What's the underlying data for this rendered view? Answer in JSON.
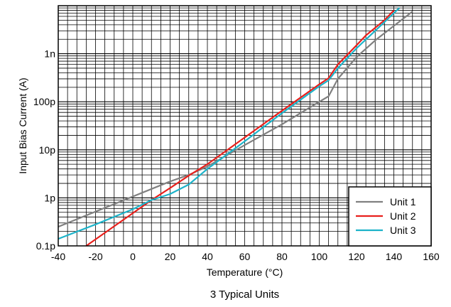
{
  "chart_data": {
    "type": "line",
    "title": "",
    "caption": "3 Typical Units",
    "xlabel": "Temperature (°C)",
    "ylabel": "Input Bias Current (A)",
    "xlim": [
      -40,
      160
    ],
    "ylim": [
      1e-13,
      1e-08
    ],
    "yscale": "log",
    "grid": true,
    "legend_position": "bottom-right",
    "x_ticks": [
      -40,
      -20,
      0,
      20,
      40,
      60,
      80,
      100,
      120,
      140,
      160
    ],
    "x_tick_labels": [
      "-40",
      "-20",
      "0",
      "20",
      "40",
      "60",
      "80",
      "100",
      "120",
      "140",
      "160"
    ],
    "y_ticks": [
      1e-13,
      1e-12,
      1e-11,
      1e-10,
      1e-09
    ],
    "y_tick_labels": [
      "0.1p",
      "1p",
      "10p",
      "100p",
      "1n"
    ],
    "series": [
      {
        "name": "Unit 1",
        "color": "#808080",
        "x": [
          -40,
          20,
          30,
          40,
          60,
          80,
          100,
          105,
          110,
          120,
          130,
          150
        ],
        "y": [
          2.5e-13,
          2.2e-12,
          3e-12,
          4.5e-12,
          1.25e-11,
          3.4e-11,
          1e-10,
          1.3e-10,
          3e-10,
          8.5e-10,
          1.9e-09,
          7.6e-09
        ]
      },
      {
        "name": "Unit 2",
        "color": "#e8201c",
        "x": [
          -25,
          10,
          20,
          30,
          40,
          60,
          80,
          100,
          105,
          110,
          120,
          125,
          135,
          140
        ],
        "y": [
          1e-13,
          9e-13,
          1.6e-12,
          2.9e-12,
          5e-12,
          1.8e-11,
          6.5e-11,
          2.3e-10,
          3.1e-10,
          6e-10,
          1.5e-09,
          2.4e-09,
          5e-09,
          8e-09
        ]
      },
      {
        "name": "Unit 3",
        "color": "#1db3c9",
        "x": [
          -40,
          -20,
          0,
          10,
          20,
          30,
          40,
          60,
          80,
          100,
          105,
          110,
          120,
          130,
          140,
          143
        ],
        "y": [
          1.4e-13,
          2.8e-13,
          5.8e-13,
          9e-13,
          1.2e-12,
          1.9e-12,
          4e-12,
          1.5e-11,
          5.8e-11,
          2.1e-10,
          2.8e-10,
          5e-10,
          1.3e-09,
          3e-09,
          7e-09,
          9e-09
        ]
      }
    ]
  }
}
